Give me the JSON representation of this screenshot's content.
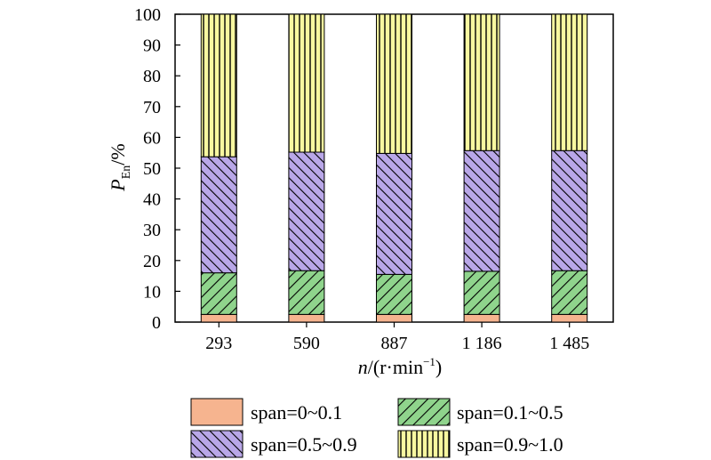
{
  "chart_data": {
    "type": "bar",
    "stacked": true,
    "categories": [
      "293",
      "590",
      "887",
      "1 186",
      "1 485"
    ],
    "series": [
      {
        "name": "span=0~0.1",
        "values": [
          2.5,
          2.5,
          2.5,
          2.5,
          2.5
        ],
        "color": "#f6b48f",
        "pattern": "solid"
      },
      {
        "name": "span=0.1~0.5",
        "values": [
          13.5,
          14.2,
          13.0,
          14.0,
          14.2
        ],
        "color": "#8fd48c",
        "pattern": "diagonal"
      },
      {
        "name": "span=0.5~0.9",
        "values": [
          37.7,
          38.5,
          39.3,
          39.2,
          39.0
        ],
        "color": "#b9a7e8",
        "pattern": "diagonal-dense"
      },
      {
        "name": "span=0.9~1.0",
        "values": [
          46.3,
          44.8,
          45.2,
          44.3,
          44.3
        ],
        "color": "#f8f8a0",
        "pattern": "vertical"
      }
    ],
    "ylim": [
      0,
      100
    ],
    "yticks": [
      "0",
      "10",
      "20",
      "30",
      "40",
      "50",
      "60",
      "70",
      "80",
      "90",
      "100"
    ],
    "ylabel_main": "P",
    "ylabel_sub": "En",
    "ylabel_unit": "/%",
    "xlabel_var": "n",
    "xlabel_unit_open": "/(r·min",
    "xlabel_sup": "−1",
    "xlabel_close": ")",
    "grid": false,
    "legend_position": "bottom"
  }
}
